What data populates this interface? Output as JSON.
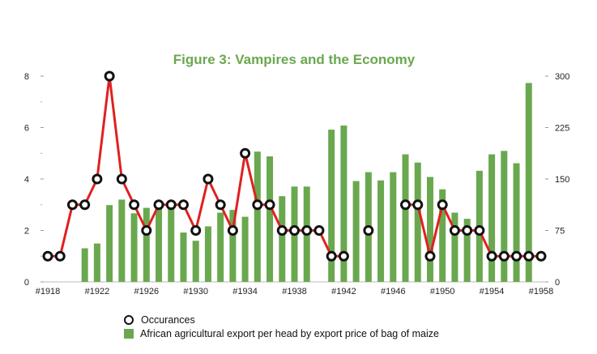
{
  "chart_data": {
    "type": "bar+line",
    "title": "Figure 3: Vampires and the Economy",
    "x": [
      1918,
      1919,
      1920,
      1921,
      1922,
      1923,
      1924,
      1925,
      1926,
      1927,
      1928,
      1929,
      1930,
      1931,
      1932,
      1933,
      1934,
      1935,
      1936,
      1937,
      1938,
      1939,
      1940,
      1941,
      1942,
      1943,
      1944,
      1945,
      1946,
      1947,
      1948,
      1949,
      1950,
      1951,
      1952,
      1953,
      1954,
      1955,
      1956,
      1957,
      1958
    ],
    "x_tick_labels": [
      "#1918",
      "#1922",
      "#1926",
      "#1930",
      "#1934",
      "#1938",
      "#1942",
      "#1946",
      "#1950",
      "#1954",
      "#1958"
    ],
    "x_tick_years": [
      1918,
      1922,
      1926,
      1930,
      1934,
      1938,
      1942,
      1946,
      1950,
      1954,
      1958
    ],
    "left_axis": {
      "ylim": [
        0,
        8
      ],
      "ticks": [
        0,
        2,
        4,
        6,
        8
      ]
    },
    "right_axis": {
      "ylim": [
        0,
        300
      ],
      "ticks": [
        0,
        75,
        150,
        225,
        300
      ]
    },
    "series": [
      {
        "name": "Occurances",
        "type": "line",
        "axis": "left",
        "color": "#e02020",
        "values": [
          1,
          1,
          3,
          3,
          4,
          8,
          4,
          3,
          2,
          3,
          3,
          3,
          2,
          4,
          3,
          2,
          5,
          3,
          3,
          2,
          2,
          2,
          2,
          1,
          1,
          null,
          2,
          null,
          null,
          3,
          3,
          1,
          3,
          2,
          2,
          2,
          1,
          1,
          1,
          1,
          1
        ]
      },
      {
        "name": "African agricultural export per head by export price of bag of maize",
        "type": "bar",
        "axis": "right",
        "color": "#6aa84f",
        "values": [
          null,
          null,
          null,
          49,
          56,
          112,
          120,
          100,
          108,
          113,
          113,
          72,
          60,
          81,
          101,
          105,
          95,
          190,
          183,
          125,
          139,
          139,
          null,
          222,
          228,
          147,
          160,
          148,
          160,
          186,
          174,
          153,
          135,
          101,
          92,
          162,
          186,
          191,
          173,
          290,
          null
        ]
      }
    ]
  },
  "legend": {
    "line_label": "Occurances",
    "bar_label": "African agricultural export per head by export price of bag of maize"
  }
}
